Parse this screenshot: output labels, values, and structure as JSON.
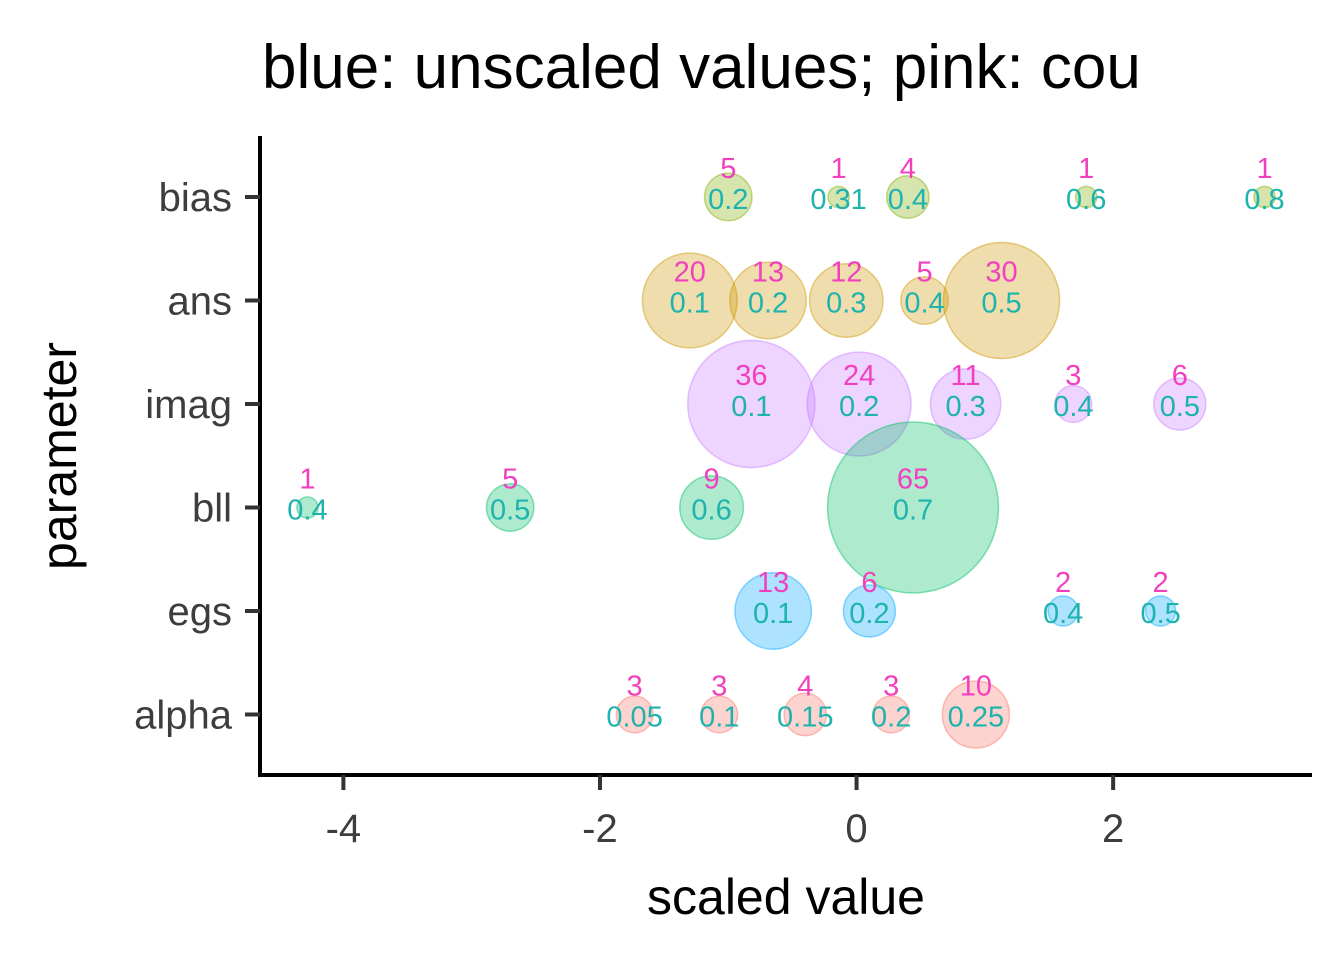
{
  "chart_data": {
    "type": "scatter",
    "title": "blue: unscaled values; pink: cou",
    "xlabel": "scaled value",
    "ylabel": "parameter",
    "xlim": [
      -4.65,
      3.55
    ],
    "x_ticks": [
      -4,
      -2,
      0,
      2
    ],
    "categories": [
      "bias",
      "ans",
      "imag",
      "bll",
      "egs",
      "alpha"
    ],
    "count_label_color": "#f23fbf",
    "value_label_color": "#1fb3ad",
    "grid": false,
    "legend": "none",
    "series": [
      {
        "category": "bias",
        "color": "#7cae00",
        "points": [
          {
            "x": -1.0,
            "count": 5,
            "value": "0.2"
          },
          {
            "x": -0.14,
            "count": 1,
            "value": "0.31"
          },
          {
            "x": 0.4,
            "count": 4,
            "value": "0.4"
          },
          {
            "x": 1.79,
            "count": 1,
            "value": "0.6"
          },
          {
            "x": 3.18,
            "count": 1,
            "value": "0.8"
          }
        ]
      },
      {
        "category": "ans",
        "color": "#cd9600",
        "points": [
          {
            "x": -1.3,
            "count": 20,
            "value": "0.1"
          },
          {
            "x": -0.69,
            "count": 13,
            "value": "0.2"
          },
          {
            "x": -0.08,
            "count": 12,
            "value": "0.3"
          },
          {
            "x": 0.53,
            "count": 5,
            "value": "0.4"
          },
          {
            "x": 1.13,
            "count": 30,
            "value": "0.5"
          }
        ]
      },
      {
        "category": "imag",
        "color": "#c77cff",
        "points": [
          {
            "x": -0.82,
            "count": 36,
            "value": "0.1"
          },
          {
            "x": 0.02,
            "count": 24,
            "value": "0.2"
          },
          {
            "x": 0.85,
            "count": 11,
            "value": "0.3"
          },
          {
            "x": 1.69,
            "count": 3,
            "value": "0.4"
          },
          {
            "x": 2.52,
            "count": 6,
            "value": "0.5"
          }
        ]
      },
      {
        "category": "bll",
        "color": "#00be67",
        "points": [
          {
            "x": -4.28,
            "count": 1,
            "value": "0.4"
          },
          {
            "x": -2.7,
            "count": 5,
            "value": "0.5"
          },
          {
            "x": -1.13,
            "count": 9,
            "value": "0.6"
          },
          {
            "x": 0.44,
            "count": 65,
            "value": "0.7"
          }
        ]
      },
      {
        "category": "egs",
        "color": "#00a9ff",
        "points": [
          {
            "x": -0.65,
            "count": 13,
            "value": "0.1"
          },
          {
            "x": 0.1,
            "count": 6,
            "value": "0.2"
          },
          {
            "x": 1.61,
            "count": 2,
            "value": "0.4"
          },
          {
            "x": 2.37,
            "count": 2,
            "value": "0.5"
          }
        ]
      },
      {
        "category": "alpha",
        "color": "#f8766d",
        "points": [
          {
            "x": -1.73,
            "count": 3,
            "value": "0.05"
          },
          {
            "x": -1.07,
            "count": 3,
            "value": "0.1"
          },
          {
            "x": -0.4,
            "count": 4,
            "value": "0.15"
          },
          {
            "x": 0.27,
            "count": 3,
            "value": "0.2"
          },
          {
            "x": 0.93,
            "count": 10,
            "value": "0.25"
          }
        ]
      }
    ]
  }
}
